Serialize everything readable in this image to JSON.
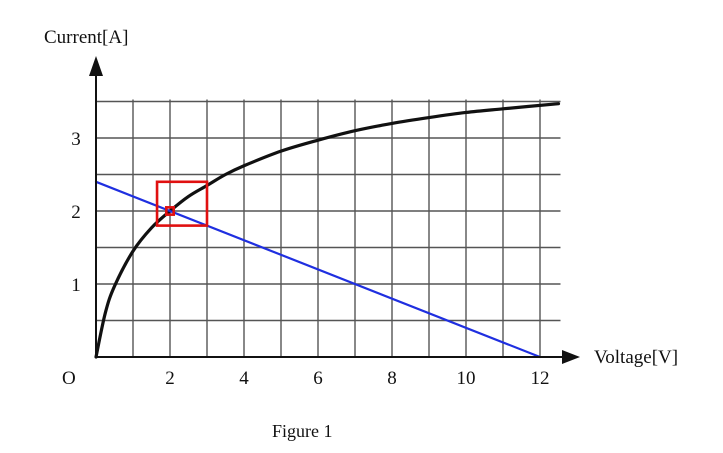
{
  "chart_data": {
    "type": "line",
    "title": "",
    "caption": "Figure 1",
    "xlabel": "Voltage[V]",
    "ylabel": "Current[A]",
    "origin_label": "O",
    "xlim": [
      0,
      12.5
    ],
    "ylim": [
      0,
      3.5
    ],
    "x_ticks": [
      2,
      4,
      6,
      8,
      10,
      12
    ],
    "y_ticks": [
      1,
      2,
      3
    ],
    "x_gridlines": [
      1,
      2,
      3,
      4,
      5,
      6,
      7,
      8,
      9,
      10,
      11,
      12
    ],
    "y_gridlines": [
      0.5,
      1,
      1.5,
      2,
      2.5,
      3,
      3.5
    ],
    "grid": true,
    "series": [
      {
        "color": "#111111",
        "x": [
          0,
          0.25,
          0.5,
          1,
          1.5,
          2,
          2.5,
          3,
          3.5,
          4,
          5,
          6,
          7,
          8,
          9,
          10,
          11,
          12.5
        ],
        "y": [
          0,
          0.6,
          0.97,
          1.45,
          1.77,
          2.0,
          2.2,
          2.35,
          2.5,
          2.62,
          2.82,
          2.97,
          3.1,
          3.2,
          3.28,
          3.35,
          3.4,
          3.47
        ]
      },
      {
        "color": "#1f2fe0",
        "x": [
          0,
          12
        ],
        "y": [
          2.4,
          0
        ]
      }
    ],
    "annotations": [
      {
        "type": "rect",
        "color": "#e01010",
        "x": [
          1.65,
          3.0
        ],
        "y": [
          1.8,
          2.4
        ]
      },
      {
        "type": "rect",
        "color": "#e01010",
        "x": [
          1.9,
          2.1
        ],
        "y": [
          1.95,
          2.05
        ]
      }
    ]
  }
}
